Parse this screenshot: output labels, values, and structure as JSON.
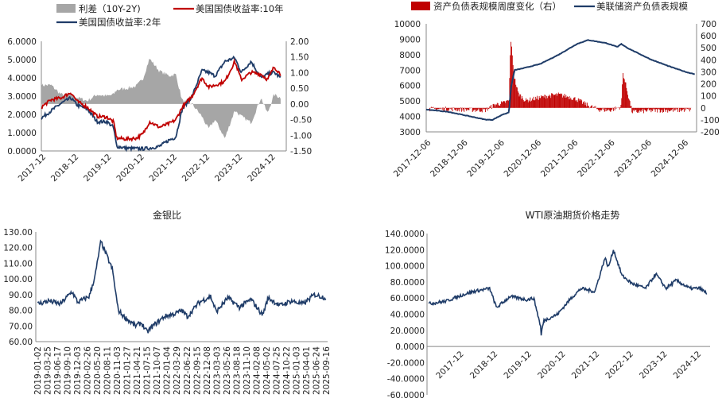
{
  "chart_data": [
    {
      "type": "line",
      "legend": [
        {
          "label": "利差（10Y-2Y)",
          "color": "#a6a6a6",
          "kind": "area"
        },
        {
          "label": "美国国债收益率:10年",
          "color": "#c00000",
          "kind": "line"
        },
        {
          "label": "美国国债收益率:2年",
          "color": "#1f3c68",
          "kind": "line"
        }
      ],
      "y_left_ticks": [
        "6.0000",
        "5.0000",
        "4.0000",
        "3.0000",
        "2.0000",
        "1.0000",
        "0.0000"
      ],
      "y_right_ticks": [
        "2.00",
        "1.50",
        "1.00",
        "0.50",
        "0.00",
        "-0.50",
        "-1.00",
        "-1.50"
      ],
      "x_ticks": [
        "2017-12",
        "2018-12",
        "2019-12",
        "2020-12",
        "2021-12",
        "2022-12",
        "2023-12",
        "2024-12"
      ],
      "ylim_left": [
        0,
        6
      ],
      "ylim_right": [
        -1.5,
        2
      ],
      "series": [
        {
          "name": "美国国债收益率:10年",
          "x": [
            2017.9,
            2018.2,
            2018.5,
            2018.8,
            2019.0,
            2019.3,
            2019.6,
            2019.9,
            2020.1,
            2020.2,
            2020.5,
            2020.8,
            2021.0,
            2021.2,
            2021.5,
            2021.8,
            2022.0,
            2022.2,
            2022.5,
            2022.8,
            2023.0,
            2023.2,
            2023.5,
            2023.8,
            2024.0,
            2024.3,
            2024.6,
            2024.8,
            2025.0,
            2025.2
          ],
          "values": [
            2.4,
            2.8,
            2.9,
            3.2,
            2.7,
            2.4,
            1.9,
            1.85,
            1.6,
            0.7,
            0.65,
            0.7,
            0.93,
            1.6,
            1.3,
            1.5,
            1.7,
            2.4,
            3.0,
            4.0,
            3.5,
            3.6,
            3.8,
            4.9,
            3.9,
            4.3,
            4.2,
            3.9,
            4.6,
            4.2
          ]
        },
        {
          "name": "美国国债收益率:2年",
          "x": [
            2017.9,
            2018.2,
            2018.5,
            2018.8,
            2019.0,
            2019.3,
            2019.6,
            2019.9,
            2020.1,
            2020.2,
            2020.5,
            2020.8,
            2021.0,
            2021.2,
            2021.5,
            2021.8,
            2022.0,
            2022.2,
            2022.5,
            2022.8,
            2023.0,
            2023.2,
            2023.5,
            2023.8,
            2024.0,
            2024.3,
            2024.6,
            2024.8,
            2025.0,
            2025.2
          ],
          "values": [
            1.8,
            2.2,
            2.6,
            2.9,
            2.5,
            2.3,
            1.6,
            1.6,
            1.3,
            0.25,
            0.15,
            0.13,
            0.12,
            0.15,
            0.25,
            0.6,
            0.75,
            2.3,
            3.0,
            4.4,
            4.3,
            4.1,
            4.9,
            5.1,
            4.3,
            4.9,
            4.0,
            4.2,
            4.3,
            4.0
          ]
        },
        {
          "name": "利差（10Y-2Y)",
          "x": [
            2017.9,
            2018.2,
            2018.5,
            2018.8,
            2019.0,
            2019.3,
            2019.6,
            2019.9,
            2020.1,
            2020.2,
            2020.5,
            2020.8,
            2021.0,
            2021.2,
            2021.5,
            2021.8,
            2022.0,
            2022.2,
            2022.5,
            2022.8,
            2023.0,
            2023.2,
            2023.5,
            2023.8,
            2024.0,
            2024.3,
            2024.6,
            2024.8,
            2025.0,
            2025.2
          ],
          "values": [
            0.6,
            0.6,
            0.3,
            0.3,
            0.2,
            0.1,
            0.3,
            0.25,
            0.3,
            0.45,
            0.5,
            0.57,
            0.81,
            1.45,
            1.05,
            0.9,
            0.95,
            0.1,
            0.0,
            -0.4,
            -0.8,
            -0.5,
            -1.1,
            -0.2,
            -0.4,
            -0.6,
            0.2,
            -0.3,
            0.3,
            0.2
          ]
        }
      ]
    },
    {
      "type": "line",
      "legend": [
        {
          "label": "资产负债表规模周度变化（右）",
          "color": "#c00000",
          "kind": "bar"
        },
        {
          "label": "美联储资产负债表规模",
          "color": "#1f3c68",
          "kind": "line"
        }
      ],
      "y_left_ticks": [
        "10000",
        "9000",
        "8000",
        "7000",
        "6000",
        "5000",
        "4000",
        "3000"
      ],
      "y_right_ticks": [
        "700",
        "600",
        "500",
        "400",
        "300",
        "200",
        "100",
        "0",
        "-100",
        "-200"
      ],
      "x_ticks": [
        "2017-12-06",
        "2018-12-06",
        "2019-12-06",
        "2020-12-06",
        "2021-12-06",
        "2022-12-06",
        "2023-12-06",
        "2024-12-06"
      ],
      "ylim_left": [
        3000,
        10000
      ],
      "ylim_right": [
        -200,
        700
      ],
      "series": [
        {
          "name": "美联储资产负债表规模",
          "x": [
            2017.9,
            2018.5,
            2019.0,
            2019.5,
            2019.7,
            2020.0,
            2020.15,
            2020.2,
            2020.3,
            2020.5,
            2021.0,
            2021.5,
            2022.0,
            2022.3,
            2022.8,
            2023.1,
            2023.2,
            2023.4,
            2024.0,
            2024.5,
            2025.0,
            2025.2
          ],
          "values": [
            4450,
            4300,
            4050,
            3800,
            3780,
            4150,
            4250,
            5800,
            7000,
            7100,
            7400,
            8000,
            8700,
            8950,
            8750,
            8500,
            8700,
            8400,
            7700,
            7250,
            6850,
            6750
          ]
        },
        {
          "name": "资产负债表规模周度变化（右）",
          "x": [
            2018.0,
            2018.5,
            2019.0,
            2019.5,
            2019.8,
            2020.0,
            2020.15,
            2020.2,
            2020.25,
            2020.3,
            2020.4,
            2020.6,
            2020.9,
            2021.2,
            2021.5,
            2021.8,
            2022.0,
            2022.3,
            2022.6,
            2022.9,
            2023.2,
            2023.25,
            2023.5,
            2023.9,
            2024.3,
            2024.7,
            2025.1
          ],
          "values": [
            -10,
            -10,
            -15,
            -20,
            30,
            40,
            60,
            580,
            400,
            250,
            120,
            60,
            80,
            100,
            110,
            90,
            70,
            20,
            -15,
            -20,
            10,
            290,
            -35,
            -25,
            -20,
            -20,
            -15
          ]
        }
      ]
    },
    {
      "type": "line",
      "title": "金银比",
      "y_ticks": [
        "130.00",
        "120.00",
        "110.00",
        "100.00",
        "90.00",
        "80.00",
        "70.00",
        "60.00"
      ],
      "ylim": [
        60,
        130
      ],
      "x_ticks": [
        "2019-01-02",
        "2019-03-25",
        "2019-06-17",
        "2019-09-10",
        "2019-12-03",
        "2020-02-26",
        "2020-05-20",
        "2020-08-11",
        "2020-11-03",
        "2021-01-27",
        "2021-04-21",
        "2021-07-15",
        "2021-10-07",
        "2022-01-04",
        "2022-03-29",
        "2022-06-22",
        "2022-09-15",
        "2022-12-08",
        "2023-03-03",
        "2023-05-26",
        "2023-08-18",
        "2023-11-10",
        "2024-02-08",
        "2024-05-02",
        "2024-07-25",
        "2024-10-22",
        "2025-01-03",
        "2025-04-01",
        "2025-06-24",
        "2025-09-16"
      ],
      "series": [
        {
          "name": "金银比",
          "x": [
            0,
            0.04,
            0.08,
            0.12,
            0.14,
            0.16,
            0.18,
            0.2,
            0.22,
            0.26,
            0.28,
            0.3,
            0.34,
            0.36,
            0.38,
            0.4,
            0.44,
            0.48,
            0.5,
            0.52,
            0.56,
            0.6,
            0.62,
            0.66,
            0.7,
            0.74,
            0.78,
            0.8,
            0.84,
            0.88,
            0.92,
            0.96,
            1.0
          ],
          "values": [
            84,
            86,
            84,
            92,
            85,
            87,
            89,
            102,
            124,
            106,
            80,
            76,
            70,
            72,
            66,
            70,
            76,
            78,
            80,
            76,
            85,
            89,
            79,
            88,
            82,
            87,
            77,
            88,
            83,
            86,
            84,
            90,
            88
          ]
        }
      ]
    },
    {
      "type": "line",
      "title": "WTI原油期货价格走势",
      "y_ticks": [
        "140.0000",
        "120.0000",
        "100.0000",
        "80.0000",
        "60.0000",
        "40.0000",
        "20.0000",
        "0.0000",
        "-20.0000",
        "-40.0000",
        "-60.0000"
      ],
      "ylim": [
        -60,
        140
      ],
      "x_ticks": [
        "2017-12",
        "2018-12",
        "2019-12",
        "2020-12",
        "2021-12",
        "2022-12",
        "2023-12",
        "2024-12"
      ],
      "series": [
        {
          "name": "WTI",
          "x": [
            2017.0,
            2017.5,
            2018.0,
            2018.3,
            2018.8,
            2019.0,
            2019.4,
            2019.9,
            2020.1,
            2020.3,
            2020.31,
            2020.32,
            2020.4,
            2020.8,
            2021.2,
            2021.5,
            2021.9,
            2022.2,
            2022.3,
            2022.45,
            2022.7,
            2023.0,
            2023.4,
            2023.7,
            2024.0,
            2024.3,
            2024.7,
            2025.0,
            2025.2
          ],
          "values": [
            53,
            56,
            64,
            68,
            72,
            48,
            62,
            58,
            60,
            25,
            -37,
            18,
            32,
            40,
            60,
            72,
            68,
            110,
            98,
            120,
            88,
            78,
            72,
            90,
            72,
            82,
            72,
            72,
            66
          ]
        }
      ]
    }
  ]
}
